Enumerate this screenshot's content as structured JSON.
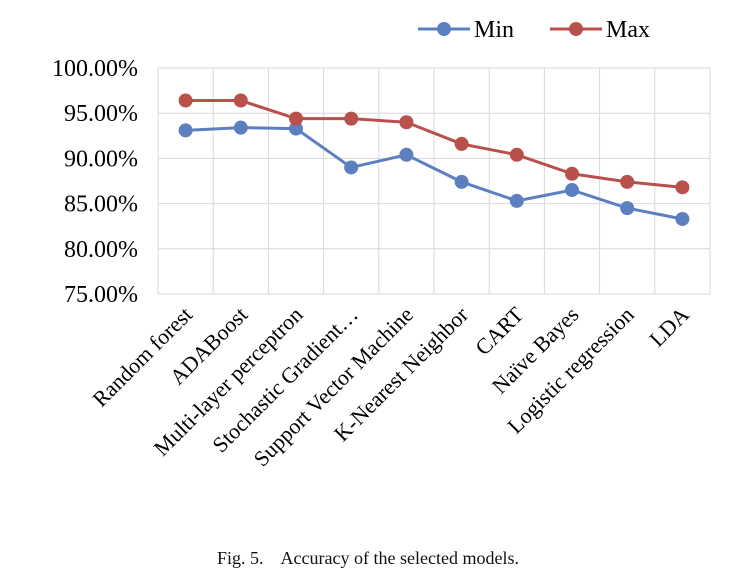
{
  "chart_data": {
    "type": "line",
    "categories": [
      "Random forest",
      "ADABoost",
      "Multi-layer perceptron",
      "Stochastic Gradient…",
      "Support Vector Machine",
      "K-Nearest Neighbor",
      "CART",
      "Naïve Bayes",
      "Logistic regression",
      "LDA"
    ],
    "series": [
      {
        "name": "Min",
        "color": "#5b7fbf",
        "values": [
          93.1,
          93.4,
          93.3,
          89.0,
          90.4,
          87.4,
          85.3,
          86.5,
          84.5,
          83.3
        ]
      },
      {
        "name": "Max",
        "color": "#b8504b",
        "values": [
          96.4,
          96.4,
          94.4,
          94.4,
          94.0,
          91.6,
          90.4,
          88.3,
          87.4,
          86.8
        ]
      }
    ],
    "ylim": [
      75,
      100
    ],
    "yticks": [
      "75.00%",
      "80.00%",
      "85.00%",
      "90.00%",
      "95.00%",
      "100.00%"
    ],
    "grid": true,
    "legend_position": "top-right"
  },
  "caption": "Fig. 5.    Accuracy of the selected models."
}
